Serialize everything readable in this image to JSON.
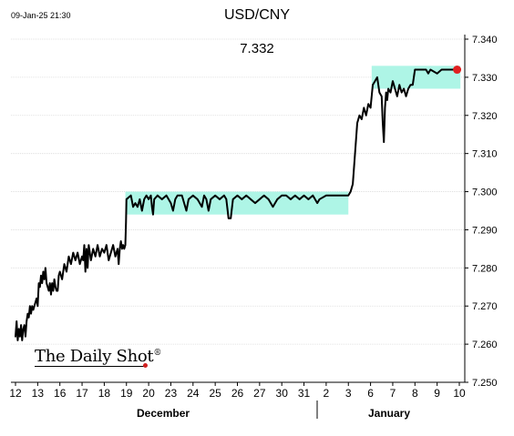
{
  "header": {
    "timestamp": "09-Jan-25 21:30",
    "title": "USD/CNY",
    "last_value": "7.332"
  },
  "branding": {
    "logo_text": "The Daily Shot",
    "logo_mark": "®"
  },
  "colors": {
    "line": "#000000",
    "highlight": "#aef5e6",
    "last_point": "#e02020",
    "grid": "#d9d9d9"
  },
  "chart_data": {
    "type": "line",
    "title": "USD/CNY",
    "xlabel": "",
    "ylabel": "",
    "ylim": [
      7.25,
      7.34
    ],
    "grid": true,
    "y_ticks": [
      "7.250",
      "7.260",
      "7.270",
      "7.280",
      "7.290",
      "7.300",
      "7.310",
      "7.320",
      "7.330",
      "7.340"
    ],
    "x_ticks": [
      "12",
      "13",
      "16",
      "17",
      "18",
      "19",
      "20",
      "23",
      "24",
      "25",
      "26",
      "27",
      "30",
      "31",
      "2",
      "3",
      "6",
      "7",
      "8",
      "9",
      "10"
    ],
    "month_labels": [
      "December",
      "January"
    ],
    "series": [
      {
        "values": [
          [
            0.0,
            7.262
          ],
          [
            0.05,
            7.266
          ],
          [
            0.1,
            7.261
          ],
          [
            0.15,
            7.264
          ],
          [
            0.2,
            7.262
          ],
          [
            0.25,
            7.265
          ],
          [
            0.3,
            7.261
          ],
          [
            0.35,
            7.264
          ],
          [
            0.4,
            7.265
          ],
          [
            0.45,
            7.262
          ],
          [
            0.5,
            7.266
          ],
          [
            0.55,
            7.268
          ],
          [
            0.6,
            7.267
          ],
          [
            0.65,
            7.27
          ],
          [
            0.7,
            7.268
          ],
          [
            0.75,
            7.27
          ],
          [
            0.8,
            7.269
          ],
          [
            0.85,
            7.27
          ],
          [
            0.9,
            7.271
          ],
          [
            0.95,
            7.272
          ],
          [
            1.0,
            7.27
          ],
          [
            1.05,
            7.276
          ],
          [
            1.1,
            7.275
          ],
          [
            1.15,
            7.278
          ],
          [
            1.2,
            7.276
          ],
          [
            1.25,
            7.279
          ],
          [
            1.3,
            7.277
          ],
          [
            1.35,
            7.28
          ],
          [
            1.4,
            7.276
          ],
          [
            1.45,
            7.275
          ],
          [
            1.5,
            7.274
          ],
          [
            1.55,
            7.276
          ],
          [
            1.6,
            7.273
          ],
          [
            1.65,
            7.276
          ],
          [
            1.7,
            7.274
          ],
          [
            1.75,
            7.277
          ],
          [
            1.8,
            7.275
          ],
          [
            1.85,
            7.274
          ],
          [
            1.9,
            7.274
          ],
          [
            1.95,
            7.278
          ],
          [
            2.0,
            7.279
          ],
          [
            2.1,
            7.277
          ],
          [
            2.2,
            7.281
          ],
          [
            2.3,
            7.279
          ],
          [
            2.4,
            7.283
          ],
          [
            2.5,
            7.281
          ],
          [
            2.6,
            7.284
          ],
          [
            2.7,
            7.282
          ],
          [
            2.8,
            7.284
          ],
          [
            2.9,
            7.281
          ],
          [
            3.0,
            7.283
          ],
          [
            3.05,
            7.282
          ],
          [
            3.1,
            7.286
          ],
          [
            3.15,
            7.279
          ],
          [
            3.2,
            7.285
          ],
          [
            3.25,
            7.28
          ],
          [
            3.3,
            7.286
          ],
          [
            3.4,
            7.282
          ],
          [
            3.5,
            7.285
          ],
          [
            3.6,
            7.283
          ],
          [
            3.7,
            7.286
          ],
          [
            3.8,
            7.283
          ],
          [
            3.9,
            7.285
          ],
          [
            4.0,
            7.284
          ],
          [
            4.1,
            7.286
          ],
          [
            4.2,
            7.282
          ],
          [
            4.3,
            7.284
          ],
          [
            4.4,
            7.286
          ],
          [
            4.5,
            7.283
          ],
          [
            4.6,
            7.285
          ],
          [
            4.65,
            7.281
          ],
          [
            4.7,
            7.285
          ],
          [
            4.75,
            7.287
          ],
          [
            4.8,
            7.285
          ],
          [
            4.85,
            7.286
          ],
          [
            4.9,
            7.285
          ],
          [
            4.95,
            7.286
          ],
          [
            4.98,
            7.292
          ],
          [
            5.0,
            7.298
          ],
          [
            5.2,
            7.299
          ],
          [
            5.3,
            7.296
          ],
          [
            5.4,
            7.297
          ],
          [
            5.5,
            7.296
          ],
          [
            5.6,
            7.298
          ],
          [
            5.7,
            7.295
          ],
          [
            5.8,
            7.298
          ],
          [
            5.9,
            7.299
          ],
          [
            6.0,
            7.298
          ],
          [
            6.1,
            7.299
          ],
          [
            6.15,
            7.296
          ],
          [
            6.2,
            7.294
          ],
          [
            6.25,
            7.298
          ],
          [
            6.4,
            7.299
          ],
          [
            6.6,
            7.298
          ],
          [
            6.8,
            7.299
          ],
          [
            7.0,
            7.297
          ],
          [
            7.1,
            7.295
          ],
          [
            7.2,
            7.298
          ],
          [
            7.3,
            7.299
          ],
          [
            7.5,
            7.299
          ],
          [
            7.6,
            7.297
          ],
          [
            7.7,
            7.295
          ],
          [
            7.8,
            7.298
          ],
          [
            8.0,
            7.299
          ],
          [
            8.2,
            7.298
          ],
          [
            8.4,
            7.296
          ],
          [
            8.5,
            7.299
          ],
          [
            8.6,
            7.298
          ],
          [
            8.7,
            7.295
          ],
          [
            8.8,
            7.298
          ],
          [
            9.0,
            7.299
          ],
          [
            9.2,
            7.298
          ],
          [
            9.4,
            7.299
          ],
          [
            9.5,
            7.298
          ],
          [
            9.6,
            7.293
          ],
          [
            9.7,
            7.293
          ],
          [
            9.8,
            7.298
          ],
          [
            10.0,
            7.299
          ],
          [
            10.2,
            7.298
          ],
          [
            10.4,
            7.299
          ],
          [
            10.6,
            7.298
          ],
          [
            10.8,
            7.297
          ],
          [
            11.0,
            7.298
          ],
          [
            11.2,
            7.299
          ],
          [
            11.4,
            7.298
          ],
          [
            11.6,
            7.296
          ],
          [
            11.8,
            7.298
          ],
          [
            12.0,
            7.299
          ],
          [
            12.2,
            7.299
          ],
          [
            12.4,
            7.298
          ],
          [
            12.6,
            7.299
          ],
          [
            12.8,
            7.298
          ],
          [
            13.0,
            7.299
          ],
          [
            13.2,
            7.298
          ],
          [
            13.4,
            7.299
          ],
          [
            13.6,
            7.297
          ],
          [
            13.7,
            7.298
          ],
          [
            14.0,
            7.299
          ],
          [
            14.5,
            7.299
          ],
          [
            15.0,
            7.299
          ],
          [
            15.1,
            7.3
          ],
          [
            15.2,
            7.302
          ],
          [
            15.3,
            7.31
          ],
          [
            15.4,
            7.318
          ],
          [
            15.5,
            7.32
          ],
          [
            15.6,
            7.319
          ],
          [
            15.7,
            7.322
          ],
          [
            15.8,
            7.32
          ],
          [
            15.9,
            7.323
          ],
          [
            16.0,
            7.322
          ],
          [
            16.05,
            7.325
          ],
          [
            16.1,
            7.328
          ],
          [
            16.2,
            7.329
          ],
          [
            16.3,
            7.33
          ],
          [
            16.4,
            7.326
          ],
          [
            16.5,
            7.325
          ],
          [
            16.55,
            7.318
          ],
          [
            16.6,
            7.313
          ],
          [
            16.65,
            7.322
          ],
          [
            16.7,
            7.326
          ],
          [
            16.75,
            7.324
          ],
          [
            16.8,
            7.327
          ],
          [
            16.9,
            7.326
          ],
          [
            17.0,
            7.329
          ],
          [
            17.1,
            7.327
          ],
          [
            17.2,
            7.325
          ],
          [
            17.3,
            7.328
          ],
          [
            17.4,
            7.326
          ],
          [
            17.5,
            7.327
          ],
          [
            17.6,
            7.325
          ],
          [
            17.7,
            7.327
          ],
          [
            17.8,
            7.328
          ],
          [
            17.9,
            7.328
          ],
          [
            18.0,
            7.332
          ],
          [
            18.5,
            7.332
          ],
          [
            18.6,
            7.331
          ],
          [
            18.7,
            7.332
          ],
          [
            19.0,
            7.331
          ],
          [
            19.2,
            7.332
          ],
          [
            19.5,
            7.332
          ],
          [
            19.7,
            7.332
          ],
          [
            19.9,
            7.332
          ]
        ]
      }
    ],
    "highlight_bands": [
      {
        "x_start": 4.95,
        "x_end": 15.0,
        "y_low": 7.294,
        "y_high": 7.3
      },
      {
        "x_start": 16.05,
        "x_end": 20.05,
        "y_low": 7.327,
        "y_high": 7.333
      }
    ],
    "last_point": {
      "x": 19.9,
      "y": 7.332
    }
  }
}
